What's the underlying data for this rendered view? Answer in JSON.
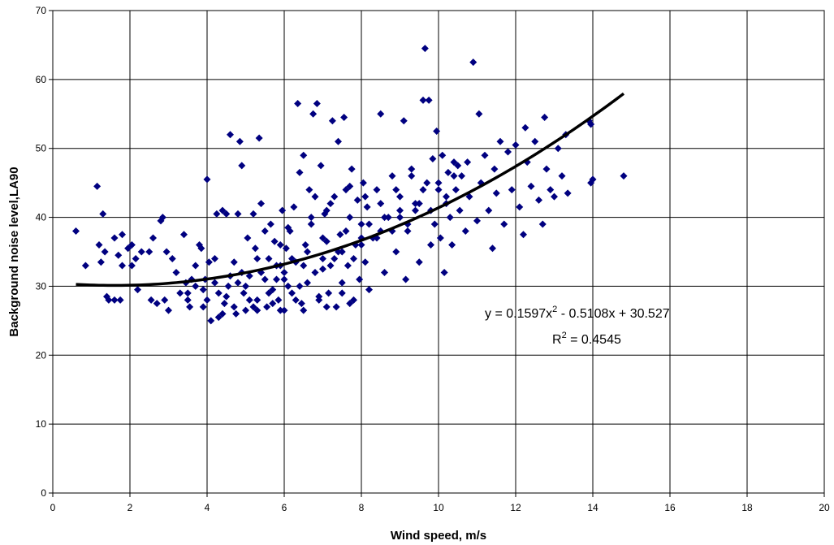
{
  "chart_data": {
    "type": "scatter",
    "title": "",
    "xlabel": "Wind speed, m/s",
    "ylabel": "Background noise level,LA90",
    "xlim": [
      0,
      20
    ],
    "ylim": [
      0,
      70
    ],
    "x_ticks": [
      "0",
      "2",
      "4",
      "6",
      "8",
      "10",
      "12",
      "14",
      "16",
      "18",
      "20"
    ],
    "y_ticks": [
      "0",
      "10",
      "20",
      "30",
      "40",
      "50",
      "60",
      "70"
    ],
    "grid": true,
    "legend": "none",
    "marker": "diamond",
    "marker_color": "#000080",
    "trendline": {
      "type": "polynomial",
      "coefficients": [
        0.1597,
        -0.5108,
        30.527
      ],
      "x_range": [
        0.6,
        14.8
      ],
      "color": "#000000",
      "equation_parts": [
        "y = 0.1597x",
        "2",
        " - 0.5108x + 30.527"
      ],
      "r2_parts": [
        "R",
        "2",
        " = 0.4545"
      ]
    },
    "series": [
      {
        "points": [
          [
            0.6,
            38
          ],
          [
            0.85,
            33
          ],
          [
            1.15,
            44.5
          ],
          [
            1.3,
            40.5
          ],
          [
            1.2,
            36
          ],
          [
            1.25,
            33.5
          ],
          [
            1.35,
            35
          ],
          [
            1.45,
            28
          ],
          [
            1.4,
            28.5
          ],
          [
            1.6,
            28
          ],
          [
            1.75,
            28
          ],
          [
            1.6,
            37
          ],
          [
            1.8,
            37.5
          ],
          [
            1.7,
            34.5
          ],
          [
            1.8,
            33
          ],
          [
            1.95,
            35.5
          ],
          [
            2.05,
            36
          ],
          [
            2.05,
            33
          ],
          [
            2.15,
            34
          ],
          [
            2.3,
            35
          ],
          [
            2.2,
            29.5
          ],
          [
            2.5,
            35
          ],
          [
            2.6,
            37
          ],
          [
            2.55,
            28
          ],
          [
            2.7,
            27.5
          ],
          [
            2.8,
            39.5
          ],
          [
            2.85,
            40
          ],
          [
            2.9,
            28
          ],
          [
            2.95,
            35
          ],
          [
            3,
            26.5
          ],
          [
            3.1,
            34
          ],
          [
            3.2,
            32
          ],
          [
            3.3,
            29
          ],
          [
            3.4,
            37.5
          ],
          [
            3.45,
            30.5
          ],
          [
            3.5,
            28
          ],
          [
            3.55,
            27
          ],
          [
            3.6,
            31
          ],
          [
            3.7,
            33
          ],
          [
            3.8,
            36
          ],
          [
            3.85,
            35.5
          ],
          [
            3.9,
            27
          ],
          [
            3.95,
            31
          ],
          [
            4,
            45.5
          ],
          [
            4.1,
            25
          ],
          [
            4.05,
            33.5
          ],
          [
            4.2,
            34
          ],
          [
            4.25,
            40.5
          ],
          [
            4.3,
            25.5
          ],
          [
            4.4,
            41
          ],
          [
            4.45,
            27.5
          ],
          [
            4.5,
            40.5
          ],
          [
            4.55,
            30
          ],
          [
            4.6,
            52
          ],
          [
            4.7,
            33.5
          ],
          [
            4.75,
            26
          ],
          [
            4.8,
            40.5
          ],
          [
            4.85,
            51
          ],
          [
            4.9,
            47.5
          ],
          [
            4.95,
            29
          ],
          [
            5,
            26.5
          ],
          [
            5.05,
            37
          ],
          [
            5.1,
            31.5
          ],
          [
            5.2,
            40.5
          ],
          [
            5.25,
            35.5
          ],
          [
            5.3,
            28
          ],
          [
            5.35,
            51.5
          ],
          [
            5.4,
            42
          ],
          [
            5.5,
            38
          ],
          [
            5.55,
            27
          ],
          [
            5.6,
            34
          ],
          [
            5.65,
            39
          ],
          [
            5.7,
            29.5
          ],
          [
            5.75,
            36.5
          ],
          [
            5.8,
            31
          ],
          [
            5.85,
            28
          ],
          [
            5.9,
            33
          ],
          [
            5.95,
            41
          ],
          [
            6,
            26.5
          ],
          [
            6.05,
            35.5
          ],
          [
            6.1,
            30
          ],
          [
            6.15,
            38
          ],
          [
            6.2,
            29
          ],
          [
            6.25,
            41.5
          ],
          [
            6.3,
            33.5
          ],
          [
            6.35,
            56.5
          ],
          [
            6.4,
            46.5
          ],
          [
            6.45,
            27.5
          ],
          [
            6.5,
            49
          ],
          [
            6.55,
            36
          ],
          [
            6.6,
            30.5
          ],
          [
            6.65,
            44
          ],
          [
            6.7,
            39
          ],
          [
            6.75,
            55
          ],
          [
            6.8,
            43
          ],
          [
            6.85,
            56.5
          ],
          [
            6.9,
            28
          ],
          [
            6.95,
            47.5
          ],
          [
            7,
            32.5
          ],
          [
            7.05,
            40.5
          ],
          [
            7.1,
            36.5
          ],
          [
            7.15,
            29
          ],
          [
            7.2,
            42
          ],
          [
            7.25,
            54
          ],
          [
            7.3,
            34
          ],
          [
            7.35,
            27
          ],
          [
            7.4,
            51
          ],
          [
            7.45,
            37.5
          ],
          [
            7.5,
            30.5
          ],
          [
            7.55,
            54.5
          ],
          [
            7.6,
            44
          ],
          [
            7.65,
            33
          ],
          [
            7.7,
            40
          ],
          [
            7.75,
            47
          ],
          [
            7.8,
            28
          ],
          [
            7.85,
            36
          ],
          [
            7.9,
            42.5
          ],
          [
            7.95,
            31
          ],
          [
            8,
            39
          ],
          [
            8.05,
            45
          ],
          [
            8.1,
            33.5
          ],
          [
            8.15,
            41.5
          ],
          [
            8.2,
            29.5
          ],
          [
            8.3,
            37
          ],
          [
            8.4,
            44
          ],
          [
            8.5,
            55
          ],
          [
            8.6,
            32
          ],
          [
            8.7,
            40
          ],
          [
            8.8,
            46
          ],
          [
            8.9,
            35
          ],
          [
            9,
            43
          ],
          [
            9.1,
            54
          ],
          [
            9.15,
            31
          ],
          [
            9.2,
            38
          ],
          [
            9.3,
            47
          ],
          [
            9.4,
            41
          ],
          [
            9.5,
            33.5
          ],
          [
            9.6,
            57
          ],
          [
            9.65,
            64.5
          ],
          [
            9.7,
            45
          ],
          [
            9.75,
            57
          ],
          [
            9.8,
            36
          ],
          [
            9.85,
            48.5
          ],
          [
            9.9,
            39
          ],
          [
            9.95,
            52.5
          ],
          [
            10,
            44
          ],
          [
            10.05,
            37
          ],
          [
            10.1,
            49
          ],
          [
            10.15,
            32
          ],
          [
            10.2,
            42
          ],
          [
            10.25,
            46.5
          ],
          [
            10.3,
            40
          ],
          [
            10.35,
            36
          ],
          [
            10.4,
            48
          ],
          [
            10.45,
            44
          ],
          [
            10.5,
            47.5
          ],
          [
            10.55,
            41
          ],
          [
            10.6,
            46
          ],
          [
            10.7,
            38
          ],
          [
            10.75,
            48
          ],
          [
            10.8,
            43
          ],
          [
            10.9,
            62.5
          ],
          [
            11,
            39.5
          ],
          [
            11.05,
            55
          ],
          [
            11.1,
            45
          ],
          [
            11.2,
            49
          ],
          [
            11.3,
            41
          ],
          [
            11.4,
            35.5
          ],
          [
            11.45,
            47
          ],
          [
            11.5,
            43.5
          ],
          [
            11.6,
            51
          ],
          [
            11.7,
            39
          ],
          [
            11.8,
            49.5
          ],
          [
            11.9,
            44
          ],
          [
            12,
            50.5
          ],
          [
            12.1,
            41.5
          ],
          [
            12.2,
            37.5
          ],
          [
            12.25,
            53
          ],
          [
            12.3,
            48
          ],
          [
            12.4,
            44.5
          ],
          [
            12.5,
            51
          ],
          [
            12.6,
            42.5
          ],
          [
            12.7,
            39
          ],
          [
            12.75,
            54.5
          ],
          [
            12.8,
            47
          ],
          [
            12.9,
            44
          ],
          [
            13,
            43
          ],
          [
            13.1,
            50
          ],
          [
            13.2,
            46
          ],
          [
            13.3,
            52
          ],
          [
            13.35,
            43.5
          ],
          [
            13.9,
            54
          ],
          [
            13.95,
            53.5
          ],
          [
            13.95,
            45
          ],
          [
            14,
            45.5
          ],
          [
            14.8,
            46
          ],
          [
            4.3,
            29
          ],
          [
            4.6,
            31.5
          ],
          [
            4.8,
            30.5
          ],
          [
            5.2,
            27
          ],
          [
            5.4,
            32
          ],
          [
            5.6,
            29
          ],
          [
            5.8,
            33
          ],
          [
            6,
            31
          ],
          [
            6.2,
            34
          ],
          [
            6.4,
            30
          ],
          [
            6.6,
            35
          ],
          [
            6.8,
            32
          ],
          [
            7,
            37
          ],
          [
            7.2,
            33
          ],
          [
            7.4,
            35
          ],
          [
            7.6,
            38
          ],
          [
            7.8,
            34
          ],
          [
            8,
            36
          ],
          [
            8.2,
            39
          ],
          [
            8.4,
            37
          ],
          [
            8.6,
            40
          ],
          [
            8.8,
            38
          ],
          [
            9,
            41
          ],
          [
            9.2,
            39
          ],
          [
            9.4,
            42
          ],
          [
            9.6,
            44
          ],
          [
            9.8,
            41
          ],
          [
            10,
            45
          ],
          [
            10.2,
            43
          ],
          [
            10.4,
            46
          ],
          [
            5,
            30
          ],
          [
            5.5,
            31
          ],
          [
            6,
            32
          ],
          [
            6.5,
            33
          ],
          [
            7,
            34
          ],
          [
            7.5,
            35
          ],
          [
            8,
            37
          ],
          [
            8.5,
            38
          ],
          [
            9,
            40
          ],
          [
            9.5,
            42
          ],
          [
            4.5,
            28.5
          ],
          [
            5.1,
            28
          ],
          [
            5.7,
            27.5
          ],
          [
            6.3,
            28
          ],
          [
            6.9,
            28.5
          ],
          [
            7.5,
            29
          ],
          [
            3.9,
            29.5
          ],
          [
            4.2,
            30.5
          ],
          [
            4.9,
            32
          ],
          [
            5.3,
            34
          ],
          [
            5.9,
            36
          ],
          [
            6.1,
            38.5
          ],
          [
            6.7,
            40
          ],
          [
            7.1,
            41
          ],
          [
            7.3,
            43
          ],
          [
            7.7,
            44.5
          ],
          [
            8.1,
            43
          ],
          [
            8.5,
            42
          ],
          [
            8.9,
            44
          ],
          [
            9.3,
            46
          ],
          [
            3.5,
            29
          ],
          [
            3.7,
            30
          ],
          [
            4.0,
            28
          ],
          [
            4.4,
            26
          ],
          [
            4.7,
            27
          ],
          [
            5.3,
            26.5
          ],
          [
            5.9,
            26.5
          ],
          [
            6.5,
            26.5
          ],
          [
            7.1,
            27
          ],
          [
            7.7,
            27.5
          ]
        ]
      }
    ]
  }
}
